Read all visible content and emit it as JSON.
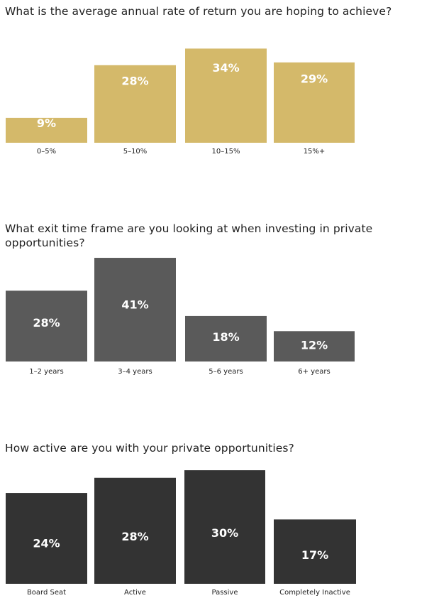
{
  "chart_data": [
    {
      "type": "bar",
      "title": "What is the average annual rate of return you are hoping to achieve?",
      "categories": [
        "0–5%",
        "5–10%",
        "10–15%",
        "15%+"
      ],
      "values": [
        9,
        28,
        34,
        29
      ],
      "value_labels": [
        "9%",
        "28%",
        "34%",
        "29%"
      ],
      "color": "#d4b96a"
    },
    {
      "type": "bar",
      "title": "What exit time frame are you looking at when investing in private opportunities?",
      "categories": [
        "1–2 years",
        "3–4 years",
        "5–6 years",
        "6+ years"
      ],
      "values": [
        28,
        41,
        18,
        12
      ],
      "value_labels": [
        "28%",
        "41%",
        "18%",
        "12%"
      ],
      "color": "#5a5a5a"
    },
    {
      "type": "bar",
      "title": "How active are you with your private opportunities?",
      "categories": [
        "Board Seat",
        "Active",
        "Passive",
        "Completely Inactive"
      ],
      "values": [
        24,
        28,
        30,
        17
      ],
      "value_labels": [
        "24%",
        "28%",
        "30%",
        "17%"
      ],
      "color": "#333333"
    }
  ]
}
